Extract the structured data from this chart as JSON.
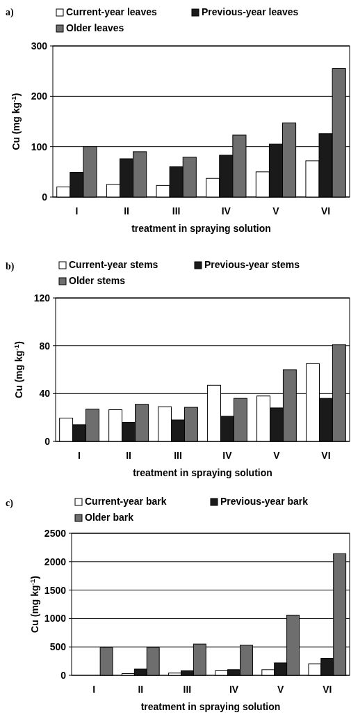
{
  "chart_data": [
    {
      "type": "bar",
      "title": "a)",
      "categories": [
        "I",
        "II",
        "III",
        "IV",
        "V",
        "VI"
      ],
      "xlabel": "treatment in spraying solution",
      "ylabel": "Cu (mg kg$^{-1}$)",
      "ylim": [
        0,
        300
      ],
      "yticks": [
        0,
        100,
        200,
        300
      ],
      "grid": "y",
      "legend": "top",
      "series": [
        {
          "name": "Current-year leaves",
          "color": "#ffffff",
          "values": [
            20,
            25,
            23,
            37,
            50,
            72
          ]
        },
        {
          "name": "Previous-year leaves",
          "color": "#1a1a1a",
          "values": [
            49,
            76,
            60,
            83,
            105,
            126
          ]
        },
        {
          "name": "Older leaves",
          "color": "#6e6e6e",
          "values": [
            100,
            90,
            79,
            123,
            147,
            255
          ]
        }
      ]
    },
    {
      "type": "bar",
      "title": "b)",
      "categories": [
        "I",
        "II",
        "III",
        "IV",
        "V",
        "VI"
      ],
      "xlabel": "treatment in spraying solution",
      "ylabel": "Cu (mg kg$^{-1}$)",
      "ylim": [
        0,
        120
      ],
      "yticks": [
        0,
        40,
        80,
        120
      ],
      "grid": "y",
      "legend": "top",
      "series": [
        {
          "name": "Current-year stems",
          "color": "#ffffff",
          "values": [
            19.5,
            26.5,
            29,
            47,
            38,
            65
          ]
        },
        {
          "name": "Previous-year stems",
          "color": "#1a1a1a",
          "values": [
            14,
            16,
            18,
            21,
            28,
            36
          ]
        },
        {
          "name": "Older stems",
          "color": "#6e6e6e",
          "values": [
            27,
            31,
            28.5,
            36,
            60,
            81
          ]
        }
      ]
    },
    {
      "type": "bar",
      "title": "c)",
      "categories": [
        "I",
        "II",
        "III",
        "IV",
        "V",
        "VI"
      ],
      "xlabel": "treatment in spraying solution",
      "ylabel": "Cu (mg kg$^{-1}$)",
      "ylim": [
        0,
        2500
      ],
      "yticks": [
        0,
        500,
        1000,
        1500,
        2000,
        2500
      ],
      "grid": "y",
      "legend": "top",
      "series": [
        {
          "name": "Current-year bark",
          "color": "#ffffff",
          "values": [
            0,
            30,
            40,
            80,
            100,
            200
          ]
        },
        {
          "name": "Previous-year bark",
          "color": "#1a1a1a",
          "values": [
            0,
            110,
            80,
            100,
            220,
            300
          ]
        },
        {
          "name": "Older bark",
          "color": "#6e6e6e",
          "values": [
            490,
            490,
            550,
            530,
            1060,
            2140
          ]
        }
      ]
    }
  ]
}
